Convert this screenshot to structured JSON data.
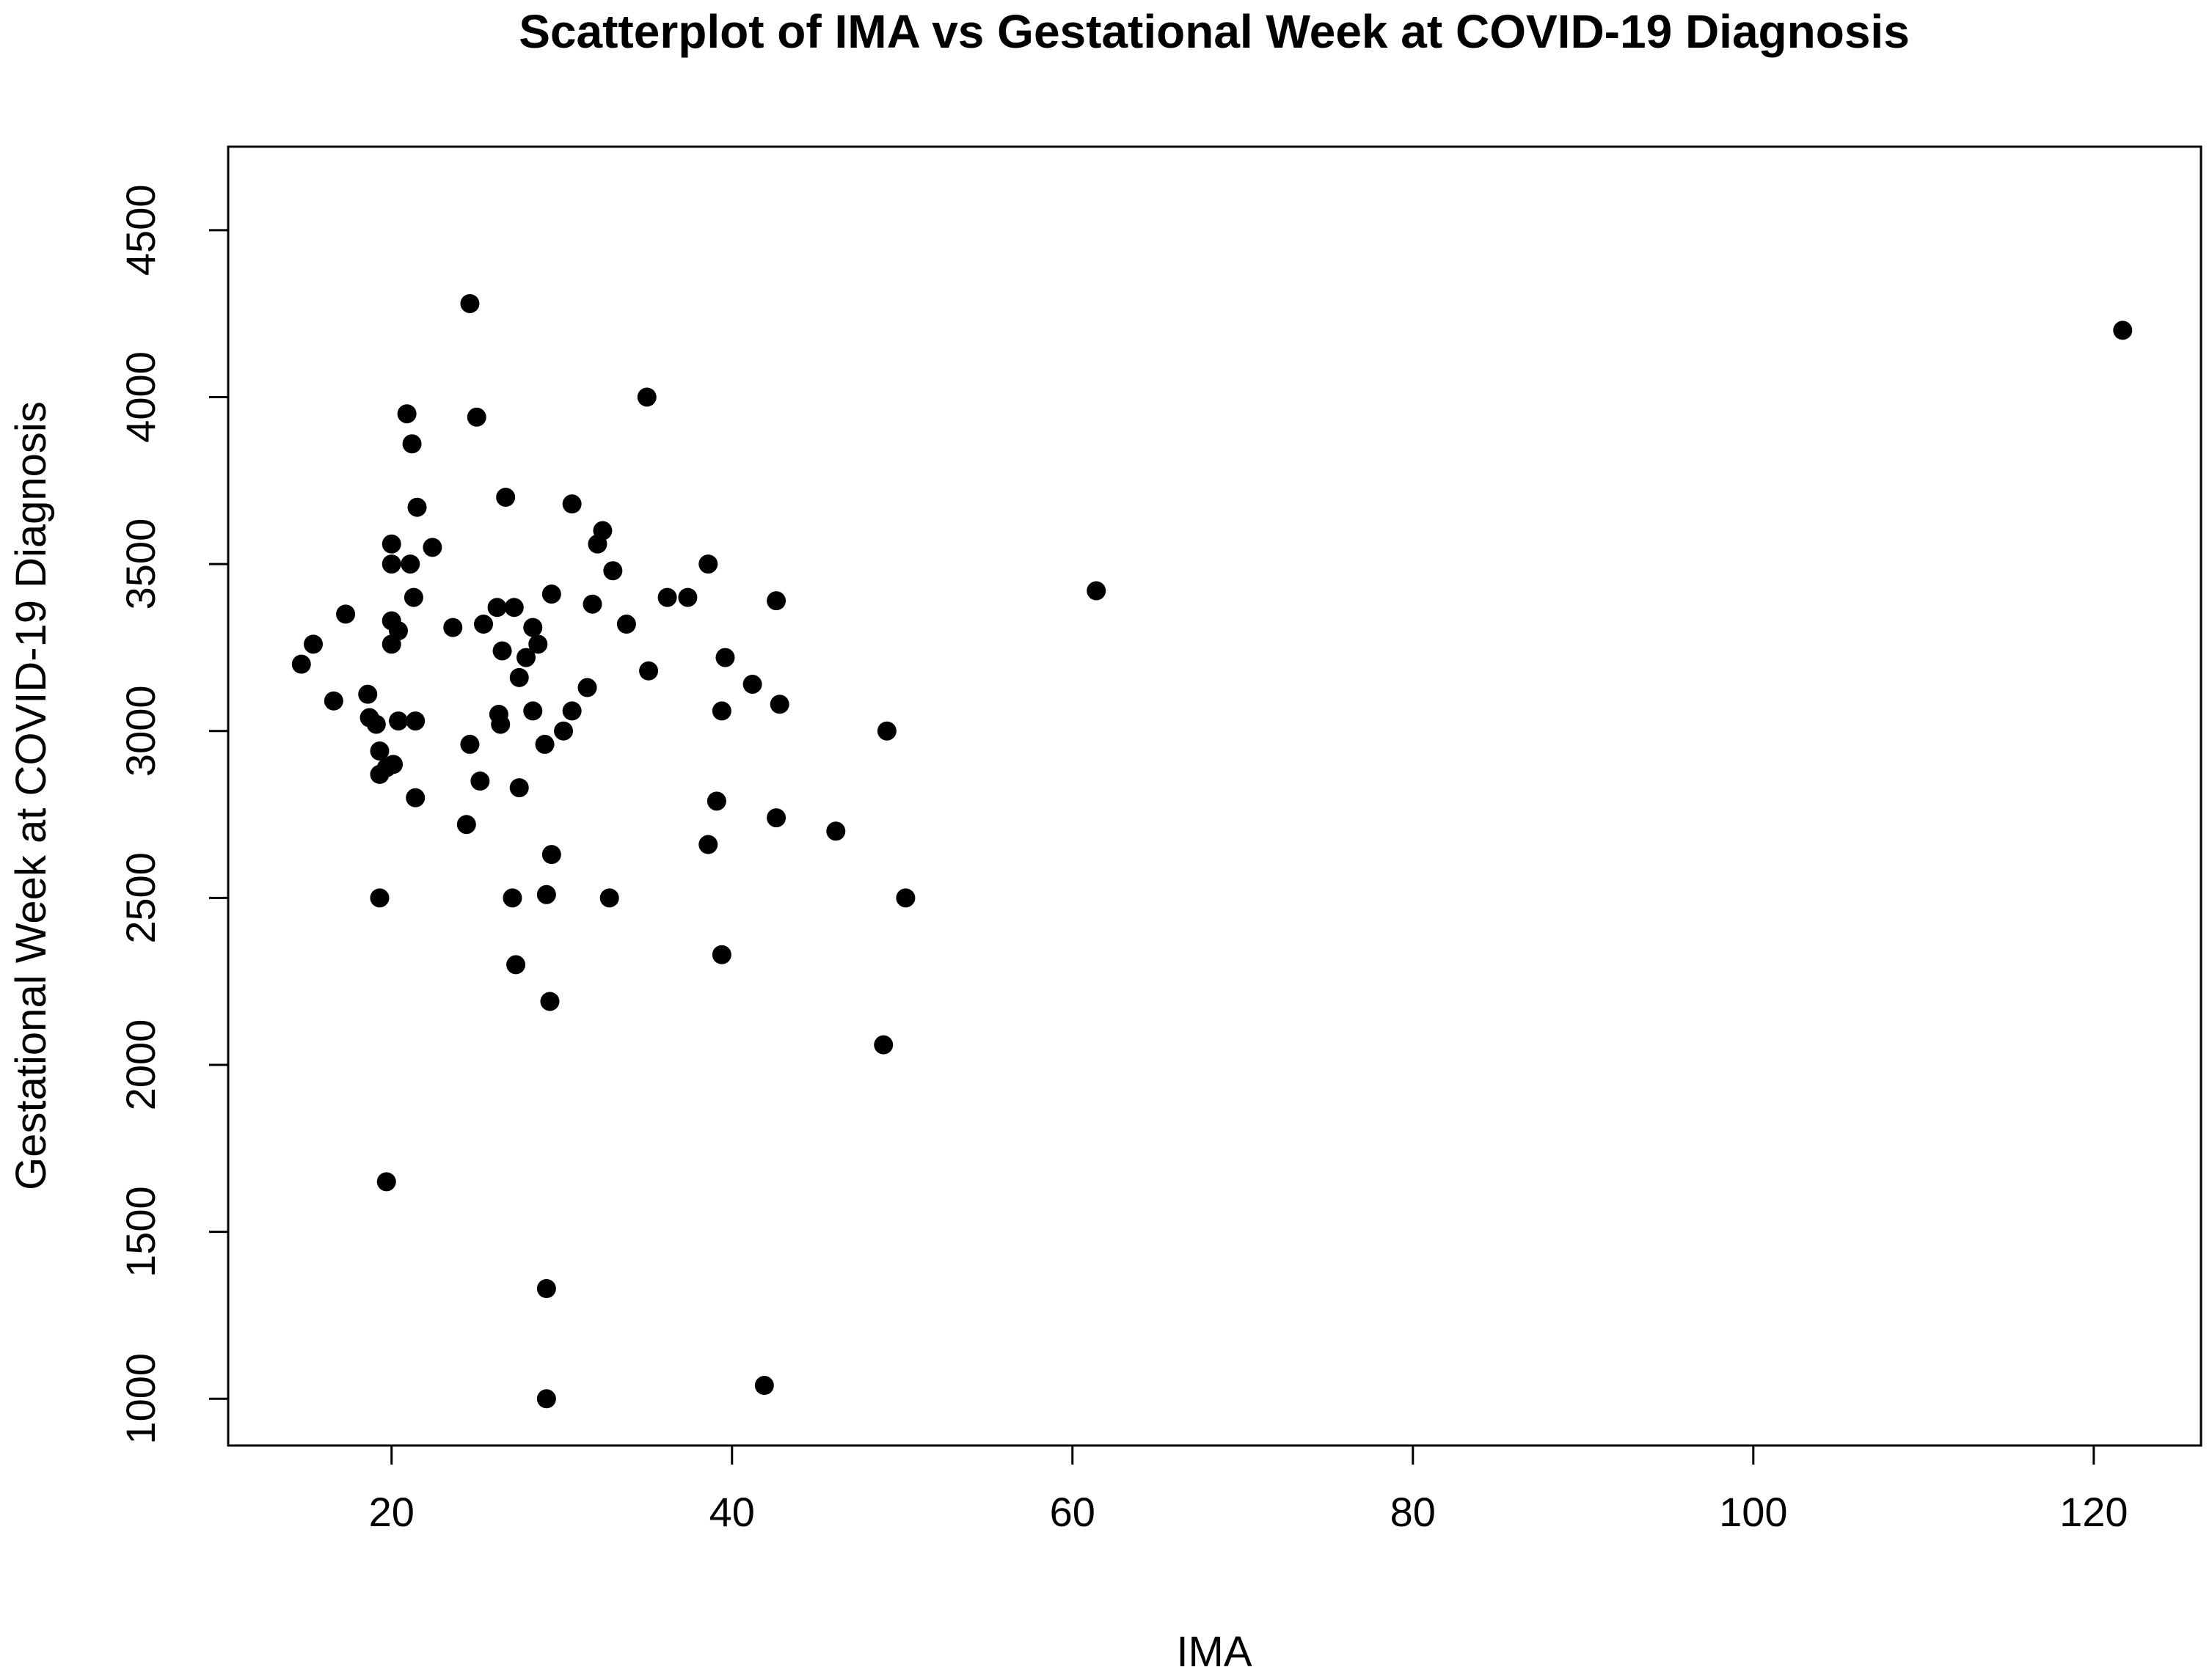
{
  "chart_data": {
    "type": "scatter",
    "title": "Scatterplot of IMA vs Gestational Week at COVID-19 Diagnosis",
    "xlabel": "IMA",
    "ylabel": "Gestational Week at COVID-19 Diagnosis",
    "xlim": [
      10.4,
      126.3
    ],
    "ylim": [
      860,
      4750
    ],
    "xticks": [
      "20",
      "40",
      "60",
      "80",
      "100",
      "120"
    ],
    "yticks": [
      "1000",
      "1500",
      "2000",
      "2500",
      "3000",
      "3500",
      "4000",
      "4500"
    ],
    "grid": false,
    "legend": "none",
    "point_color": "#000000",
    "points": [
      [
        14.7,
        3200
      ],
      [
        15.4,
        3260
      ],
      [
        16.6,
        3090
      ],
      [
        17.3,
        3350
      ],
      [
        18.6,
        3110
      ],
      [
        18.7,
        3040
      ],
      [
        19.1,
        3020
      ],
      [
        19.3,
        2940
      ],
      [
        19.3,
        2870
      ],
      [
        19.3,
        2500
      ],
      [
        19.7,
        1650
      ],
      [
        19.7,
        2890
      ],
      [
        20.0,
        3560
      ],
      [
        20.0,
        3500
      ],
      [
        20.0,
        3330
      ],
      [
        20.0,
        3260
      ],
      [
        20.1,
        2900
      ],
      [
        20.4,
        3300
      ],
      [
        20.4,
        3030
      ],
      [
        20.9,
        3950
      ],
      [
        21.2,
        3860
      ],
      [
        21.1,
        3500
      ],
      [
        21.3,
        3400
      ],
      [
        21.4,
        3030
      ],
      [
        21.4,
        2800
      ],
      [
        21.5,
        3670
      ],
      [
        22.4,
        3550
      ],
      [
        23.6,
        3310
      ],
      [
        24.4,
        2720
      ],
      [
        24.6,
        4280
      ],
      [
        24.6,
        2960
      ],
      [
        25.0,
        3940
      ],
      [
        25.2,
        2850
      ],
      [
        25.4,
        3320
      ],
      [
        26.2,
        3370
      ],
      [
        26.3,
        3050
      ],
      [
        26.4,
        3020
      ],
      [
        26.5,
        3240
      ],
      [
        26.7,
        3700
      ],
      [
        27.1,
        2500
      ],
      [
        27.2,
        3370
      ],
      [
        27.3,
        2300
      ],
      [
        27.5,
        3160
      ],
      [
        27.5,
        2830
      ],
      [
        27.9,
        3220
      ],
      [
        28.3,
        3310
      ],
      [
        28.3,
        3060
      ],
      [
        28.6,
        3260
      ],
      [
        29.0,
        2960
      ],
      [
        29.1,
        2510
      ],
      [
        29.1,
        1330
      ],
      [
        29.1,
        1000
      ],
      [
        29.3,
        2190
      ],
      [
        29.4,
        3410
      ],
      [
        29.4,
        2630
      ],
      [
        30.1,
        3000
      ],
      [
        30.6,
        3680
      ],
      [
        30.6,
        3060
      ],
      [
        31.5,
        3130
      ],
      [
        31.8,
        3380
      ],
      [
        32.1,
        3560
      ],
      [
        32.4,
        3600
      ],
      [
        32.8,
        2500
      ],
      [
        33.0,
        3480
      ],
      [
        33.8,
        3320
      ],
      [
        35.0,
        4000
      ],
      [
        35.1,
        3180
      ],
      [
        36.2,
        3400
      ],
      [
        37.4,
        3400
      ],
      [
        38.6,
        3500
      ],
      [
        38.6,
        2660
      ],
      [
        39.1,
        2790
      ],
      [
        39.4,
        3060
      ],
      [
        39.4,
        2330
      ],
      [
        39.6,
        3220
      ],
      [
        41.2,
        3140
      ],
      [
        41.9,
        1040
      ],
      [
        42.6,
        3390
      ],
      [
        42.6,
        2740
      ],
      [
        42.8,
        3080
      ],
      [
        46.1,
        2700
      ],
      [
        48.9,
        2060
      ],
      [
        49.1,
        3000
      ],
      [
        50.2,
        2500
      ],
      [
        61.4,
        3420
      ],
      [
        121.7,
        4200
      ]
    ]
  }
}
